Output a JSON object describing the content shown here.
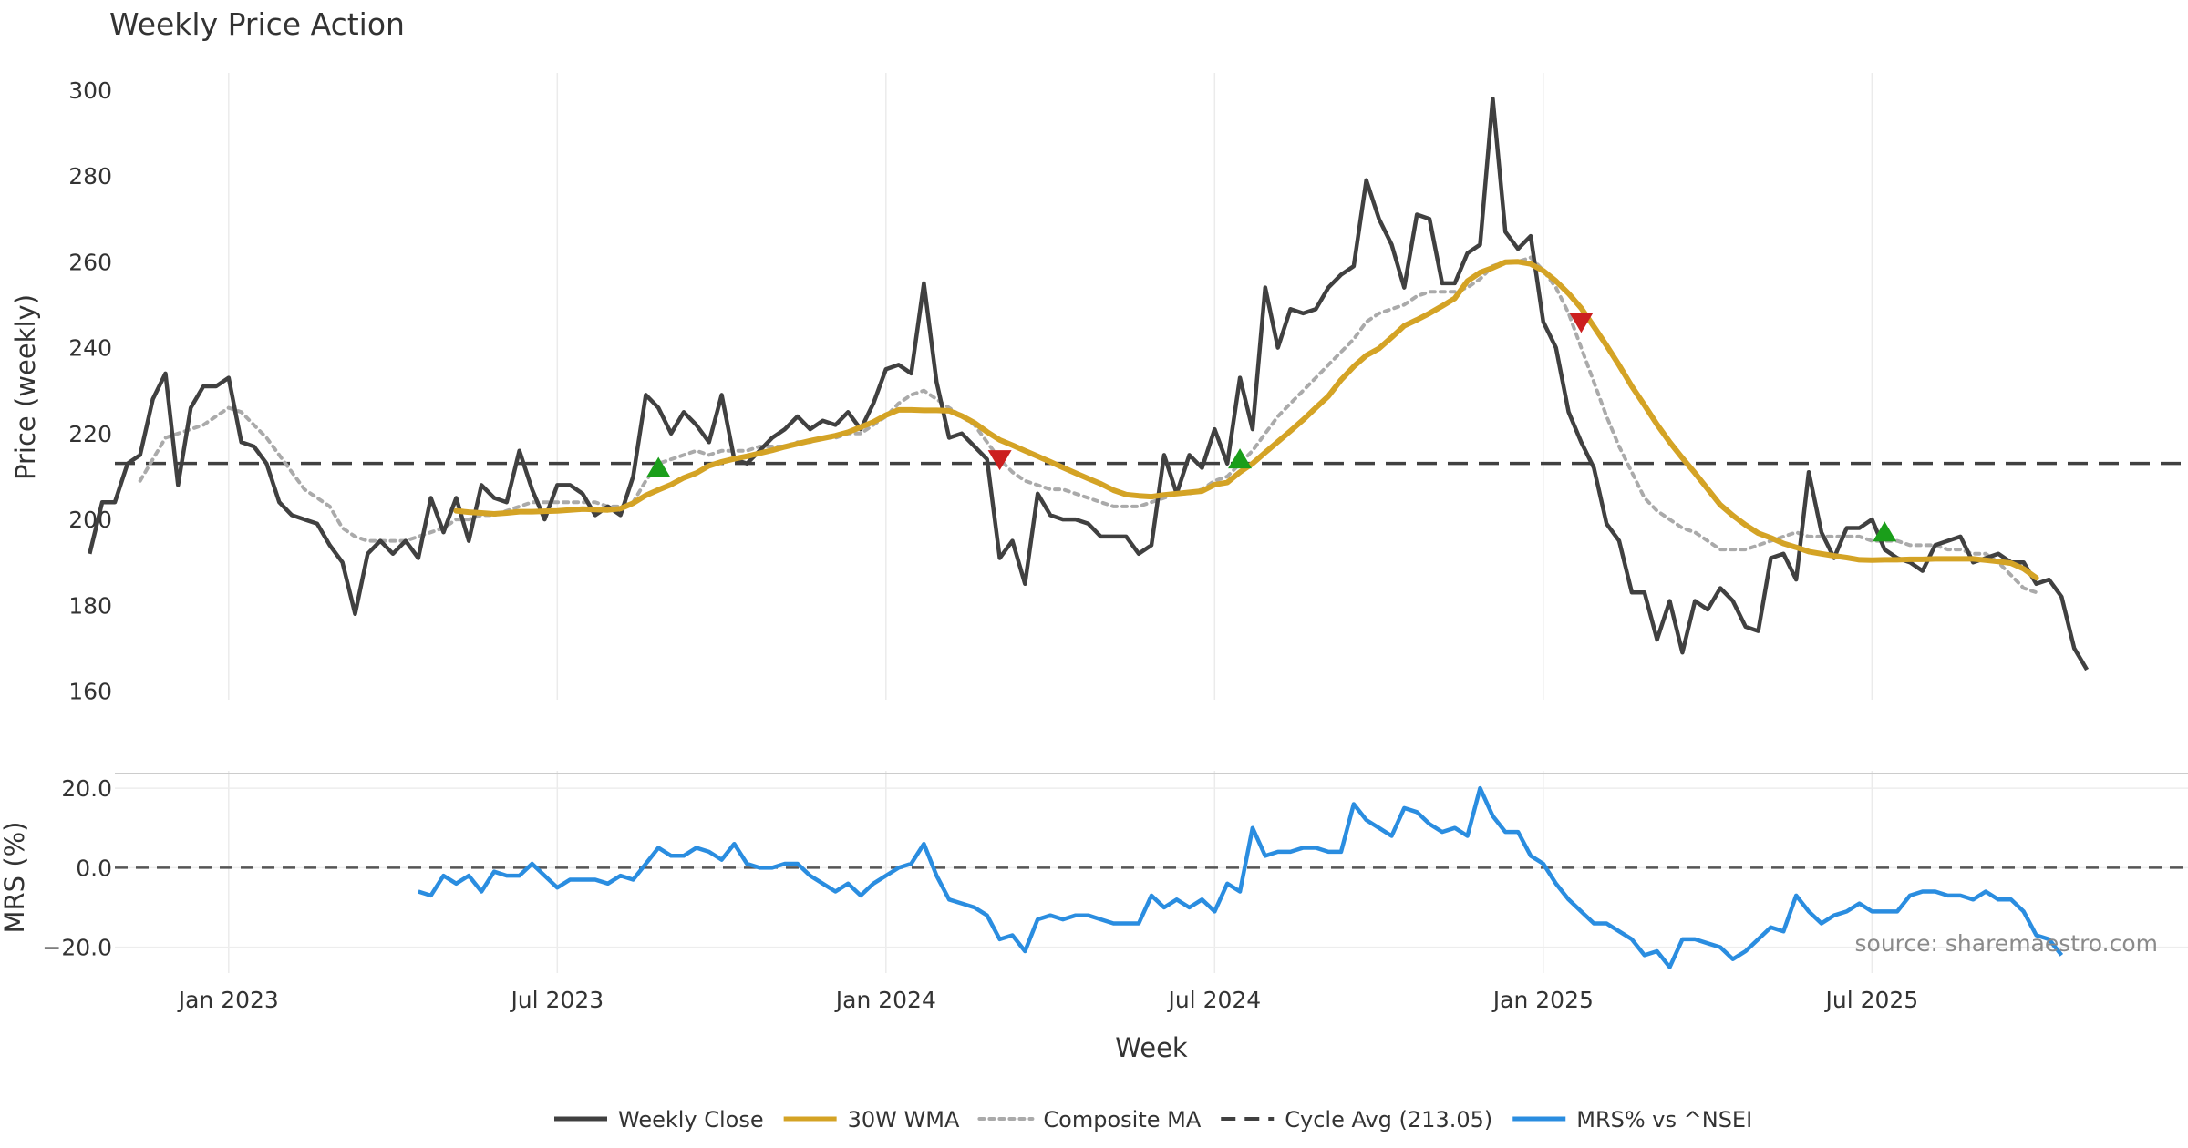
{
  "chart_data": {
    "type": "line",
    "title": "Weekly Price Action",
    "xlabel": "Week",
    "source_text": "source: sharemaestro.com",
    "x_ticks": [
      {
        "label": "Jan 2023",
        "week": 11
      },
      {
        "label": "Jul 2023",
        "week": 37
      },
      {
        "label": "Jan 2024",
        "week": 63
      },
      {
        "label": "Jul 2024",
        "week": 89
      },
      {
        "label": "Jan 2025",
        "week": 115
      },
      {
        "label": "Jul 2025",
        "week": 141
      }
    ],
    "x_range": [
      2,
      166
    ],
    "price_panel": {
      "ylabel": "Price (weekly)",
      "ylim": [
        158,
        304
      ],
      "y_ticks": [
        160,
        180,
        200,
        220,
        240,
        260,
        280,
        300
      ],
      "cycle_avg": 213.05,
      "weekly_close": [
        192,
        204,
        204,
        213,
        215,
        228,
        234,
        208,
        226,
        231,
        231,
        233,
        218,
        217,
        213,
        204,
        201,
        200,
        199,
        194,
        190,
        178,
        192,
        195,
        192,
        195,
        191,
        205,
        197,
        205,
        195,
        208,
        205,
        204,
        216,
        207,
        200,
        208,
        208,
        206,
        201,
        203,
        201,
        210,
        229,
        226,
        220,
        225,
        222,
        218,
        229,
        214,
        213,
        216,
        219,
        221,
        224,
        221,
        223,
        222,
        225,
        221,
        227,
        235,
        236,
        234,
        255,
        232,
        219,
        220,
        217,
        214,
        191,
        195,
        185,
        206,
        201,
        200,
        200,
        199,
        196,
        196,
        196,
        192,
        194,
        215,
        206,
        215,
        212,
        221,
        213,
        233,
        221,
        254,
        240,
        249,
        248,
        249,
        254,
        257,
        259,
        279,
        270,
        264,
        254,
        271,
        270,
        255,
        255,
        262,
        264,
        298,
        267,
        263,
        266,
        246,
        240,
        225,
        218,
        212,
        199,
        195,
        183,
        183,
        172,
        181,
        169,
        181,
        179,
        184,
        181,
        175,
        174,
        191,
        192,
        186,
        211,
        197,
        191,
        198,
        198,
        200,
        193,
        191,
        190,
        188,
        194,
        195,
        196,
        190,
        191,
        192,
        190,
        190,
        185,
        186,
        182,
        170,
        165
      ],
      "wma_30w": [
        null,
        null,
        null,
        null,
        null,
        null,
        null,
        null,
        null,
        null,
        null,
        null,
        null,
        null,
        null,
        null,
        null,
        null,
        null,
        null,
        null,
        null,
        null,
        null,
        null,
        null,
        null,
        null,
        null,
        202,
        201.7,
        201.5,
        201.3,
        201.5,
        201.8,
        201.8,
        201.9,
        202,
        202.2,
        202.4,
        202.3,
        202.2,
        202.5,
        203.8,
        205.6,
        206.9,
        208.1,
        209.7,
        210.8,
        212.5,
        213.4,
        214.1,
        214.7,
        215.4,
        216.1,
        216.9,
        217.6,
        218.3,
        218.9,
        219.5,
        220.3,
        221.5,
        222.7,
        224.3,
        225.5,
        225.5,
        225.4,
        225.4,
        225.3,
        224.1,
        222.5,
        220.4,
        218.5,
        217.3,
        216,
        214.7,
        213.4,
        212.1,
        210.8,
        209.5,
        208.3,
        206.8,
        205.8,
        205.5,
        205.3,
        205.7,
        206,
        206.3,
        206.6,
        208.1,
        208.6,
        211,
        213,
        215.6,
        218.1,
        220.6,
        223.2,
        226,
        228.7,
        232.5,
        235.6,
        238.2,
        239.8,
        242.4,
        245.1,
        246.5,
        248,
        249.7,
        251.5,
        255.5,
        257.5,
        258.6,
        259.9,
        260,
        259.5,
        257.9,
        255.5,
        252.6,
        249.2,
        244.9,
        240.5,
        235.9,
        231,
        226.6,
        222.1,
        218,
        214.3,
        210.8,
        207.1,
        203.4,
        200.9,
        198.7,
        196.8,
        195.7,
        194.4,
        193.5,
        192.5,
        192,
        191.5,
        191.1,
        190.6,
        190.5,
        190.6,
        190.6,
        190.7,
        190.7,
        190.8,
        190.8,
        190.8,
        190.8,
        190.5,
        190.2,
        189.8,
        188.5,
        186.4
      ],
      "composite_ma": [
        null,
        null,
        null,
        null,
        209,
        214,
        219,
        220,
        221,
        222,
        224,
        226,
        225,
        222,
        219,
        215,
        211,
        207,
        205,
        203,
        198,
        196,
        195,
        195,
        195,
        195,
        196,
        197,
        198,
        200,
        200,
        201,
        201,
        202,
        203,
        204,
        204,
        204,
        204,
        204,
        204,
        203,
        203,
        204,
        209,
        213,
        214,
        215,
        216,
        215,
        216,
        216,
        216,
        217,
        217,
        217,
        218,
        218,
        219,
        219,
        220,
        220,
        222,
        224,
        227,
        229,
        230,
        228,
        226,
        224,
        222,
        218,
        214,
        211,
        209,
        208,
        207,
        207,
        206,
        205,
        204,
        203,
        203,
        203,
        204,
        205,
        206,
        206,
        207,
        209,
        210,
        213,
        216,
        220,
        224,
        227,
        230,
        233,
        236,
        239,
        242,
        246,
        248,
        249,
        250,
        252,
        253,
        253,
        253,
        254,
        256,
        259,
        260,
        260,
        261,
        258,
        254,
        248,
        240,
        232,
        224,
        217,
        211,
        205,
        202,
        200,
        198,
        197,
        195,
        193,
        193,
        193,
        194,
        195,
        196,
        197,
        196,
        196,
        196,
        196,
        196,
        195,
        195,
        195,
        194,
        194,
        194,
        193,
        193,
        192,
        192,
        190,
        187,
        184,
        183
      ]
    },
    "mrs_panel": {
      "ylabel": "MRS (%)",
      "ylim": [
        -26.5,
        23
      ],
      "y_ticks": [
        20.0,
        0.0,
        -20.0
      ],
      "y_tick_labels": [
        "20.0",
        "0.0",
        "−20.0"
      ],
      "mrs_start_week": 26,
      "mrs_vs_nsei": [
        -6,
        -7,
        -2,
        -4,
        -2,
        -6,
        -1,
        -2,
        -2,
        1,
        -2,
        -5,
        -3,
        -3,
        -3,
        -4,
        -2,
        -3,
        1,
        5,
        3,
        3,
        5,
        4,
        2,
        6,
        1,
        0,
        0,
        1,
        1,
        -2,
        -4,
        -6,
        -4,
        -7,
        -4,
        -2,
        0,
        1,
        6,
        -2,
        -8,
        -9,
        -10,
        -12,
        -18,
        -17,
        -21,
        -13,
        -12,
        -13,
        -12,
        -12,
        -13,
        -14,
        -14,
        -14,
        -7,
        -10,
        -8,
        -10,
        -8,
        -11,
        -4,
        -6,
        10,
        3,
        4,
        4,
        5,
        5,
        4,
        4,
        16,
        12,
        10,
        8,
        15,
        14,
        11,
        9,
        10,
        8,
        20,
        13,
        9,
        9,
        3,
        1,
        -4,
        -8,
        -11,
        -14,
        -14,
        -16,
        -18,
        -22,
        -21,
        -25,
        -18,
        -18,
        -19,
        -20,
        -23,
        -21,
        -18,
        -15,
        -16,
        -7,
        -11,
        -14,
        -12,
        -11,
        -9,
        -11,
        -11,
        -11,
        -7,
        -6,
        -6,
        -7,
        -7,
        -8,
        -6,
        -8,
        -8,
        -11,
        -17,
        -18,
        -22
      ]
    },
    "signals": [
      {
        "type": "buy",
        "week": 45,
        "price": 212
      },
      {
        "type": "sell",
        "week": 72,
        "price": 214
      },
      {
        "type": "buy",
        "week": 91,
        "price": 214
      },
      {
        "type": "sell",
        "week": 118,
        "price": 246
      },
      {
        "type": "buy",
        "week": 142,
        "price": 197
      }
    ],
    "legend": [
      {
        "label": "Weekly Close",
        "color": "#404040",
        "style": "solid"
      },
      {
        "label": "30W WMA",
        "color": "#d4a325",
        "style": "solid"
      },
      {
        "label": "Composite MA",
        "color": "#aaaaaa",
        "style": "dotted"
      },
      {
        "label": "Cycle Avg (213.05)",
        "color": "#404040",
        "style": "dashed"
      },
      {
        "label": "MRS% vs ^NSEI",
        "color": "#2a8de0",
        "style": "solid"
      }
    ],
    "colors": {
      "close": "#404040",
      "wma": "#d4a325",
      "composite": "#aaaaaa",
      "cycle": "#404040",
      "mrs": "#2a8de0",
      "buy": "#1a9e1a",
      "sell": "#cc1f1f"
    }
  }
}
